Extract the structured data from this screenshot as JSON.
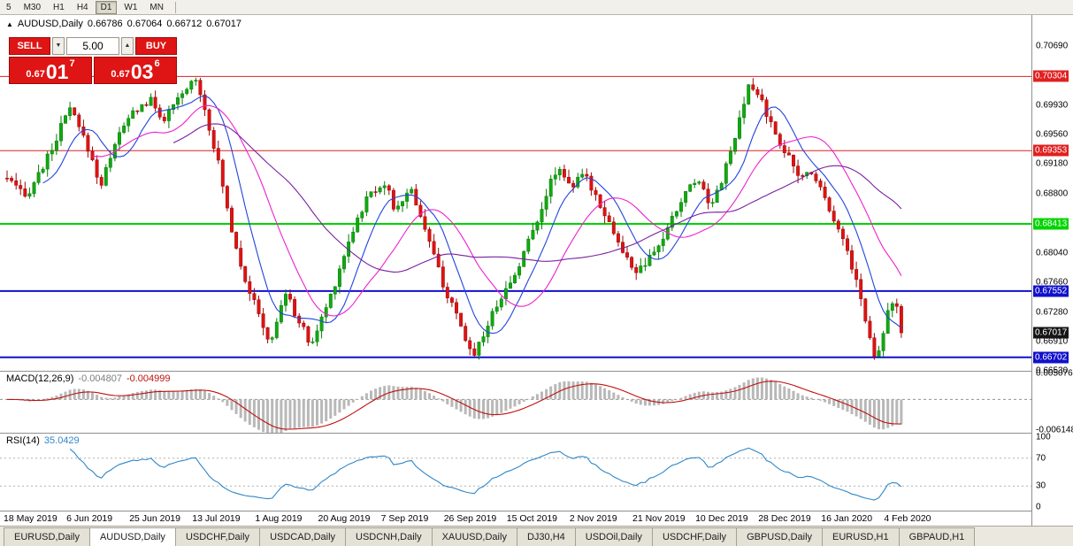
{
  "toolbar": {
    "timeframes": [
      {
        "label": "5",
        "active": false
      },
      {
        "label": "M30",
        "active": false
      },
      {
        "label": "H1",
        "active": false
      },
      {
        "label": "H4",
        "active": false
      },
      {
        "label": "D1",
        "active": true
      },
      {
        "label": "W1",
        "active": false
      },
      {
        "label": "MN",
        "active": false
      }
    ]
  },
  "chart_header": {
    "expand_arrow": "▲",
    "title": "AUDUSD,Daily",
    "open": "0.66786",
    "high": "0.67064",
    "low": "0.66712",
    "close": "0.67017"
  },
  "trade_panel": {
    "sell_label": "SELL",
    "buy_label": "BUY",
    "volume": "5.00",
    "spin_down_icon": "▼",
    "spin_up_icon": "▲",
    "sell_price": {
      "prefix": "0.67",
      "big": "01",
      "sup": "7"
    },
    "buy_price": {
      "prefix": "0.67",
      "big": "03",
      "sup": "6"
    },
    "button_color": "#df1414"
  },
  "chart_data": {
    "type": "candlestick",
    "symbol": "AUDUSD",
    "timeframe": "Daily",
    "candle_count": 200,
    "y_axis": {
      "min": 0.6653,
      "max": 0.7108,
      "ticks": [
        "0.70690",
        "0.69930",
        "0.69560",
        "0.69180",
        "0.68800",
        "0.68040",
        "0.67660",
        "0.67280",
        "0.66910",
        "0.66530"
      ]
    },
    "h_lines": [
      {
        "price": 0.70304,
        "label": "0.70304",
        "color": "#e02020",
        "thickness": 1
      },
      {
        "price": 0.69353,
        "label": "0.69353",
        "color": "#e02020",
        "thickness": 1
      },
      {
        "price": 0.68413,
        "label": "0.68413",
        "color": "#00d400",
        "thickness": 2
      },
      {
        "price": 0.67552,
        "label": "0.67552",
        "color": "#1010cc",
        "thickness": 2
      },
      {
        "price": 0.66702,
        "label": "0.66702",
        "color": "#1010cc",
        "thickness": 2
      }
    ],
    "current_price": {
      "value": 0.67017,
      "label": "0.67017",
      "bg": "#151515"
    },
    "colors": {
      "up": "#067d06",
      "up_fill": "#12a812",
      "down": "#9a0808",
      "down_fill": "#e01212",
      "ma_fast": "#2244dd",
      "ma_mid": "#ee22cc",
      "ma_slow": "#7a1fa0",
      "macd_hist": "#b8b8b8",
      "macd_signal": "#c01010",
      "rsi_line": "#2e86c8"
    },
    "price_path": [
      [
        0.0,
        0.69
      ],
      [
        0.02,
        0.6875
      ],
      [
        0.045,
        0.6925
      ],
      [
        0.07,
        0.699
      ],
      [
        0.09,
        0.694
      ],
      [
        0.105,
        0.689
      ],
      [
        0.12,
        0.6945
      ],
      [
        0.141,
        0.6985
      ],
      [
        0.16,
        0.7
      ],
      [
        0.175,
        0.6975
      ],
      [
        0.195,
        0.7005
      ],
      [
        0.211,
        0.703
      ],
      [
        0.222,
        0.6985
      ],
      [
        0.235,
        0.6925
      ],
      [
        0.25,
        0.684
      ],
      [
        0.265,
        0.6775
      ],
      [
        0.281,
        0.6725
      ],
      [
        0.295,
        0.6685
      ],
      [
        0.31,
        0.6755
      ],
      [
        0.325,
        0.672
      ],
      [
        0.34,
        0.6685
      ],
      [
        0.352,
        0.672
      ],
      [
        0.365,
        0.676
      ],
      [
        0.385,
        0.683
      ],
      [
        0.405,
        0.688
      ],
      [
        0.422,
        0.6895
      ],
      [
        0.435,
        0.6855
      ],
      [
        0.45,
        0.689
      ],
      [
        0.465,
        0.6845
      ],
      [
        0.48,
        0.679
      ],
      [
        0.492,
        0.675
      ],
      [
        0.505,
        0.6715
      ],
      [
        0.52,
        0.6672
      ],
      [
        0.535,
        0.6705
      ],
      [
        0.55,
        0.6745
      ],
      [
        0.563,
        0.6765
      ],
      [
        0.58,
        0.681
      ],
      [
        0.6,
        0.687
      ],
      [
        0.615,
        0.6915
      ],
      [
        0.633,
        0.689
      ],
      [
        0.645,
        0.6905
      ],
      [
        0.66,
        0.6875
      ],
      [
        0.675,
        0.684
      ],
      [
        0.69,
        0.68
      ],
      [
        0.704,
        0.678
      ],
      [
        0.715,
        0.679
      ],
      [
        0.73,
        0.6815
      ],
      [
        0.745,
        0.685
      ],
      [
        0.76,
        0.6885
      ],
      [
        0.774,
        0.69
      ],
      [
        0.785,
        0.6865
      ],
      [
        0.8,
        0.69
      ],
      [
        0.815,
        0.6955
      ],
      [
        0.83,
        0.702
      ],
      [
        0.844,
        0.7
      ],
      [
        0.855,
        0.6965
      ],
      [
        0.87,
        0.6935
      ],
      [
        0.885,
        0.69
      ],
      [
        0.9,
        0.691
      ],
      [
        0.915,
        0.6875
      ],
      [
        0.928,
        0.684
      ],
      [
        0.94,
        0.6805
      ],
      [
        0.952,
        0.676
      ],
      [
        0.962,
        0.6705
      ],
      [
        0.972,
        0.6668
      ],
      [
        0.985,
        0.673
      ],
      [
        0.993,
        0.6748
      ],
      [
        1.0,
        0.6702
      ]
    ],
    "x_labels": [
      "18 May 2019",
      "6 Jun 2019",
      "25 Jun 2019",
      "13 Jul 2019",
      "1 Aug 2019",
      "20 Aug 2019",
      "7 Sep 2019",
      "26 Sep 2019",
      "15 Oct 2019",
      "2 Nov 2019",
      "21 Nov 2019",
      "10 Dec 2019",
      "28 Dec 2019",
      "16 Jan 2020",
      "4 Feb 2020"
    ],
    "macd": {
      "name": "MACD(12,26,9)",
      "value1": "-0.004807",
      "value2": "-0.004999",
      "axis_max": "0.005076",
      "axis_min": "-0.006148"
    },
    "rsi": {
      "name": "RSI(14)",
      "value": "35.0429",
      "levels": [
        70,
        30
      ],
      "axis": [
        "100",
        "70",
        "30",
        "0"
      ]
    }
  },
  "tabs": [
    {
      "label": "EURUSD,Daily",
      "active": false
    },
    {
      "label": "AUDUSD,Daily",
      "active": true
    },
    {
      "label": "USDCHF,Daily",
      "active": false
    },
    {
      "label": "USDCAD,Daily",
      "active": false
    },
    {
      "label": "USDCNH,Daily",
      "active": false
    },
    {
      "label": "XAUUSD,Daily",
      "active": false
    },
    {
      "label": "DJ30,H4",
      "active": false
    },
    {
      "label": "USDOil,Daily",
      "active": false
    },
    {
      "label": "USDCHF,Daily",
      "active": false
    },
    {
      "label": "GBPUSD,Daily",
      "active": false
    },
    {
      "label": "EURUSD,H1",
      "active": false
    },
    {
      "label": "GBPAUD,H1",
      "active": false
    }
  ]
}
